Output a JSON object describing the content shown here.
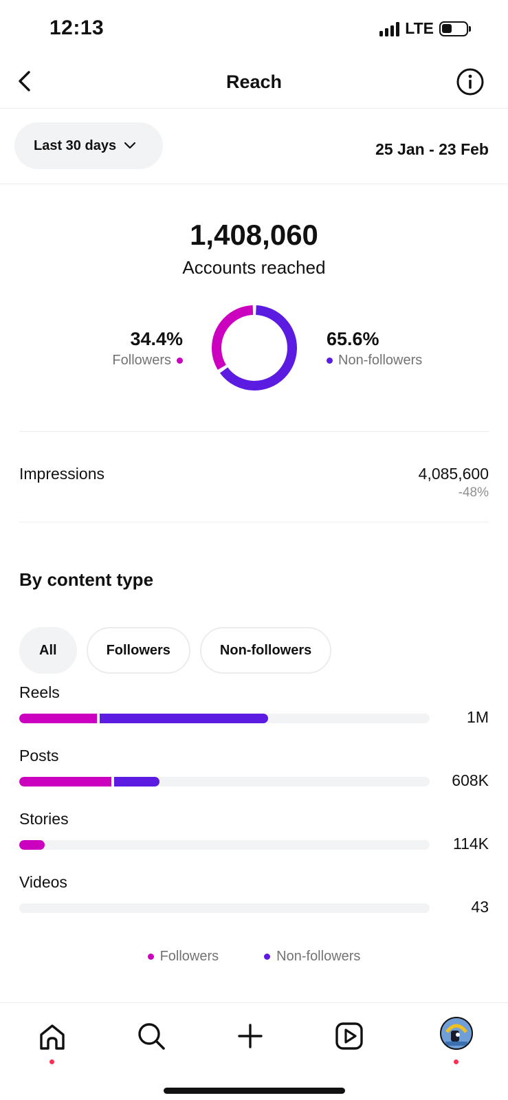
{
  "status": {
    "time": "12:13",
    "network": "LTE"
  },
  "header": {
    "title": "Reach"
  },
  "filter": {
    "range_label": "Last 30 days",
    "date_range": "25 Jan - 23 Feb"
  },
  "summary": {
    "accounts_reached": "1,408,060",
    "accounts_label": "Accounts reached",
    "followers_pct": "34.4%",
    "followers_label": "Followers",
    "nonfollowers_pct": "65.6%",
    "nonfollowers_label": "Non-followers",
    "followers_fraction": 0.344,
    "nonfollowers_fraction": 0.656
  },
  "impressions": {
    "label": "Impressions",
    "value": "4,085,600",
    "change": "-48%"
  },
  "content_type": {
    "title": "By content type",
    "chips": [
      {
        "label": "All",
        "active": true
      },
      {
        "label": "Followers",
        "active": false
      },
      {
        "label": "Non-followers",
        "active": false
      }
    ],
    "items": [
      {
        "name": "Reels",
        "value": "1M",
        "followers_fraction": 0.19,
        "nonfollowers_fraction": 0.41
      },
      {
        "name": "Posts",
        "value": "608K",
        "followers_fraction": 0.225,
        "nonfollowers_fraction": 0.11
      },
      {
        "name": "Stories",
        "value": "114K",
        "followers_fraction": 0.062,
        "nonfollowers_fraction": 0.0
      },
      {
        "name": "Videos",
        "value": "43",
        "followers_fraction": 0.0,
        "nonfollowers_fraction": 0.0
      }
    ],
    "legend": {
      "followers": "Followers",
      "nonfollowers": "Non-followers"
    }
  },
  "colors": {
    "followers": "#cc00bf",
    "nonfollowers": "#5b1be0",
    "notification": "#ff2f55"
  },
  "tabs": [
    {
      "icon": "home-icon"
    },
    {
      "icon": "search-icon"
    },
    {
      "icon": "plus-icon"
    },
    {
      "icon": "reels-icon"
    },
    {
      "icon": "profile-avatar"
    }
  ]
}
